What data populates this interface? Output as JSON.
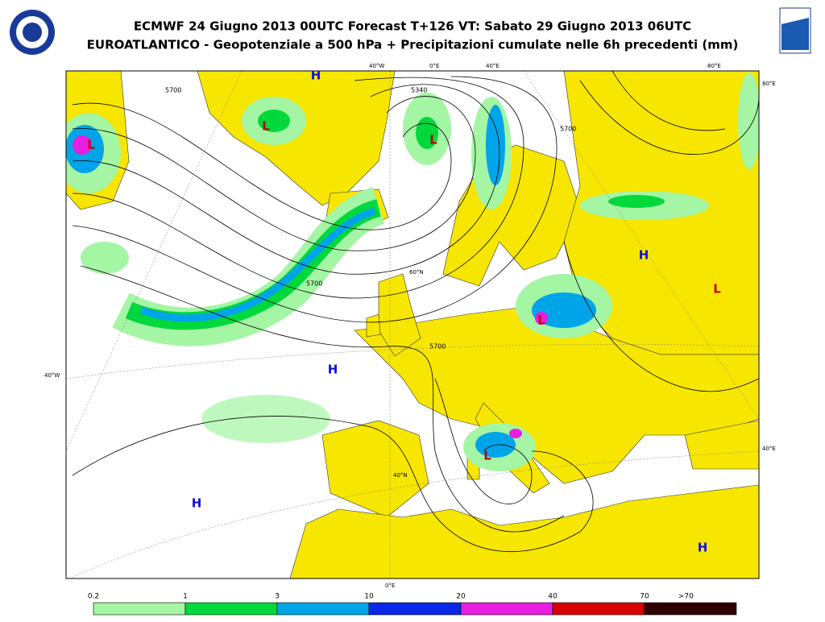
{
  "header": {
    "title": "ECMWF 24 Giugno 2013 00UTC Forecast T+126 VT: Sabato 29 Giugno 2013 06UTC",
    "subtitle": "EUROATLANTICO - Geopotenziale a 500 hPa + Precipitazioni cumulate nelle 6h precedenti (mm)"
  },
  "grid_labels": {
    "top": [
      "40°W",
      "0°E",
      "40°E",
      "80°E"
    ],
    "right_top": "80°E",
    "left": "40°W",
    "right": "40°E",
    "inner_40n": "40°N",
    "inner_60n": "60°N",
    "bottom": "0°E"
  },
  "contour_labels": [
    "5340",
    "5700",
    "5700",
    "5700",
    "5700"
  ],
  "systems": [
    {
      "letter": "H",
      "color": "#1010e0"
    },
    {
      "letter": "L",
      "color": "#c00000"
    },
    {
      "letter": "L",
      "color": "#c00000"
    },
    {
      "letter": "L",
      "color": "#c00000"
    },
    {
      "letter": "H",
      "color": "#1010e0"
    },
    {
      "letter": "L",
      "color": "#c00000"
    },
    {
      "letter": "H",
      "color": "#1010e0"
    },
    {
      "letter": "L",
      "color": "#c00000"
    },
    {
      "letter": "H",
      "color": "#1010e0"
    },
    {
      "letter": "H",
      "color": "#1010e0"
    },
    {
      "letter": "L",
      "color": "#c00000"
    }
  ],
  "legend": {
    "labels": [
      "0.2",
      "1",
      "3",
      "10",
      "20",
      "40",
      "70",
      ">70"
    ],
    "colors": [
      "#a4f5a4",
      "#00d83c",
      "#00a4e8",
      "#0a28e8",
      "#e81ee0",
      "#d80000",
      "#300000"
    ]
  }
}
